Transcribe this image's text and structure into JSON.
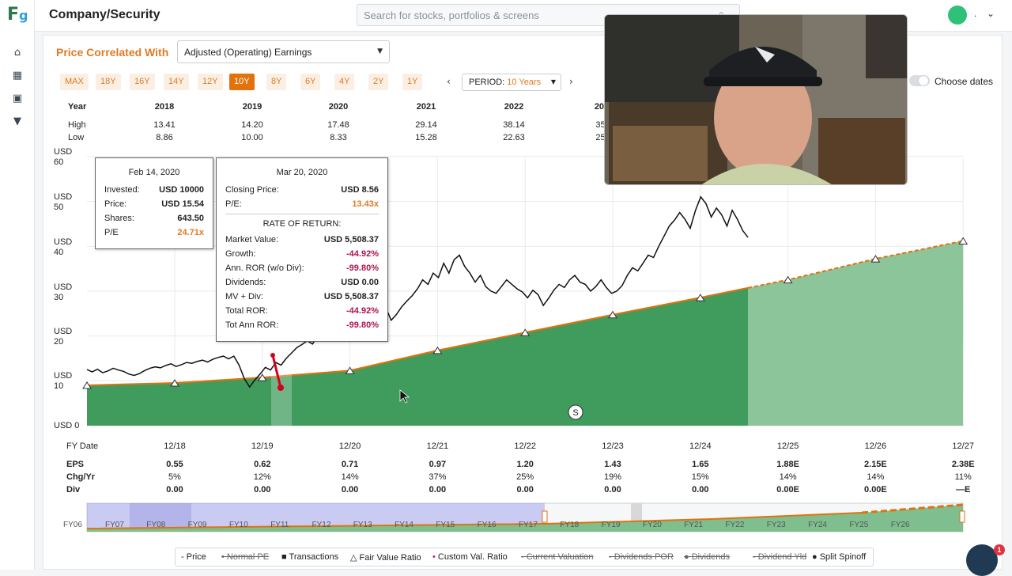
{
  "app": {
    "title": "Company/Security",
    "logo_text": "Fg"
  },
  "sidebar": {
    "items": [
      {
        "name": "home-icon",
        "glyph": "⌂"
      },
      {
        "name": "chart-icon",
        "glyph": "▦"
      },
      {
        "name": "briefcase-icon",
        "glyph": "▣"
      },
      {
        "name": "filter-icon",
        "glyph": "▼"
      }
    ]
  },
  "search": {
    "placeholder": "Search for stocks, portfolios & screens"
  },
  "user": {
    "name_dot": "."
  },
  "correlation": {
    "label": "Price Correlated With",
    "selected": "Adjusted (Operating) Earnings"
  },
  "ranges": [
    "MAX",
    "18Y",
    "16Y",
    "14Y",
    "12Y",
    "10Y",
    "8Y",
    "6Y",
    "4Y",
    "2Y",
    "1Y"
  ],
  "active_range": "10Y",
  "period": {
    "label": "PERIOD:",
    "value": "10 Years",
    "prev": "‹",
    "next": "›"
  },
  "choose_dates": "Choose dates",
  "high_low": {
    "year_label": "Year",
    "high_label": "High",
    "low_label": "Low",
    "years": [
      "2018",
      "2019",
      "2020",
      "2021",
      "2022",
      "202"
    ],
    "high": [
      "13.41",
      "14.20",
      "17.48",
      "29.14",
      "38.14",
      "35."
    ],
    "low": [
      "8.86",
      "10.00",
      "8.33",
      "15.28",
      "22.63",
      "25."
    ]
  },
  "y_axis": [
    "USD 60",
    "USD 50",
    "USD 40",
    "USD 30",
    "USD 20",
    "USD 10",
    "USD 0"
  ],
  "tooltip_left": {
    "title": "Feb 14, 2020",
    "rows": [
      {
        "k": "Invested:",
        "v": "USD 10000"
      },
      {
        "k": "Price:",
        "v": "USD 15.54"
      },
      {
        "k": "Shares:",
        "v": "643.50"
      },
      {
        "k": "P/E",
        "v": "24.71x"
      }
    ]
  },
  "tooltip_right": {
    "title": "Mar 20, 2020",
    "closing_label": "Closing Price:",
    "closing": "USD 8.56",
    "pe_label": "P/E:",
    "pe": "13.43x",
    "ror_header": "RATE OF RETURN:",
    "rows": [
      {
        "k": "Market Value:",
        "v": "USD 5,508.37"
      },
      {
        "k": "Growth:",
        "v": "-44.92%"
      },
      {
        "k": "Ann. ROR (w/o Div):",
        "v": "-99.80%"
      },
      {
        "k": "Dividends:",
        "v": "USD 0.00"
      },
      {
        "k": "MV + Div:",
        "v": "USD 5,508.37"
      },
      {
        "k": "Total ROR:",
        "v": "-44.92%"
      },
      {
        "k": "Tot Ann ROR:",
        "v": "-99.80%"
      }
    ]
  },
  "split_marker": "S",
  "fy": {
    "label": "FY Date",
    "dates": [
      "12/18",
      "12/19",
      "12/20",
      "12/21",
      "12/22",
      "12/23",
      "12/24",
      "12/25",
      "12/26",
      "12/27"
    ],
    "eps_label": "EPS",
    "eps": [
      "0.55",
      "0.62",
      "0.71",
      "0.97",
      "1.20",
      "1.43",
      "1.65",
      "1.88E",
      "2.15E",
      "2.38E"
    ],
    "chg_label": "Chg/Yr",
    "chg": [
      "5%",
      "12%",
      "14%",
      "37%",
      "25%",
      "19%",
      "15%",
      "14%",
      "14%",
      "11%"
    ],
    "div_label": "Div",
    "div": [
      "0.00",
      "0.00",
      "0.00",
      "0.00",
      "0.00",
      "0.00",
      "0.00",
      "0.00E",
      "0.00E",
      "—E"
    ]
  },
  "navigator": {
    "labels": [
      "FY06",
      "FY07",
      "FY08",
      "FY09",
      "FY10",
      "FY11",
      "FY12",
      "FY13",
      "FY14",
      "FY15",
      "FY16",
      "FY17",
      "FY18",
      "FY19",
      "FY20",
      "FY21",
      "FY22",
      "FY23",
      "FY24",
      "FY25",
      "FY26"
    ]
  },
  "legend": [
    {
      "label": "Price",
      "marker": "-",
      "muted": false
    },
    {
      "label": "Normal PE",
      "marker": "•",
      "muted": true
    },
    {
      "label": "Transactions",
      "marker": "■",
      "muted": false
    },
    {
      "label": "Fair Value Ratio",
      "marker": "△",
      "muted": false
    },
    {
      "label": "Custom Val. Ratio",
      "marker": "•",
      "muted": false
    },
    {
      "label": "Current Valuation",
      "marker": "-",
      "muted": true
    },
    {
      "label": "Dividends POR",
      "marker": "-",
      "muted": true
    },
    {
      "label": "Dividends",
      "marker": "●",
      "muted": true
    },
    {
      "label": "Dividend Yld",
      "marker": "-",
      "muted": true
    },
    {
      "label": "Split Spinoff",
      "marker": "●",
      "muted": false
    }
  ],
  "chat_badge": "1",
  "colors": {
    "accent": "#e07b24",
    "green": "#2e9c5a",
    "negative": "#b0124f"
  }
}
